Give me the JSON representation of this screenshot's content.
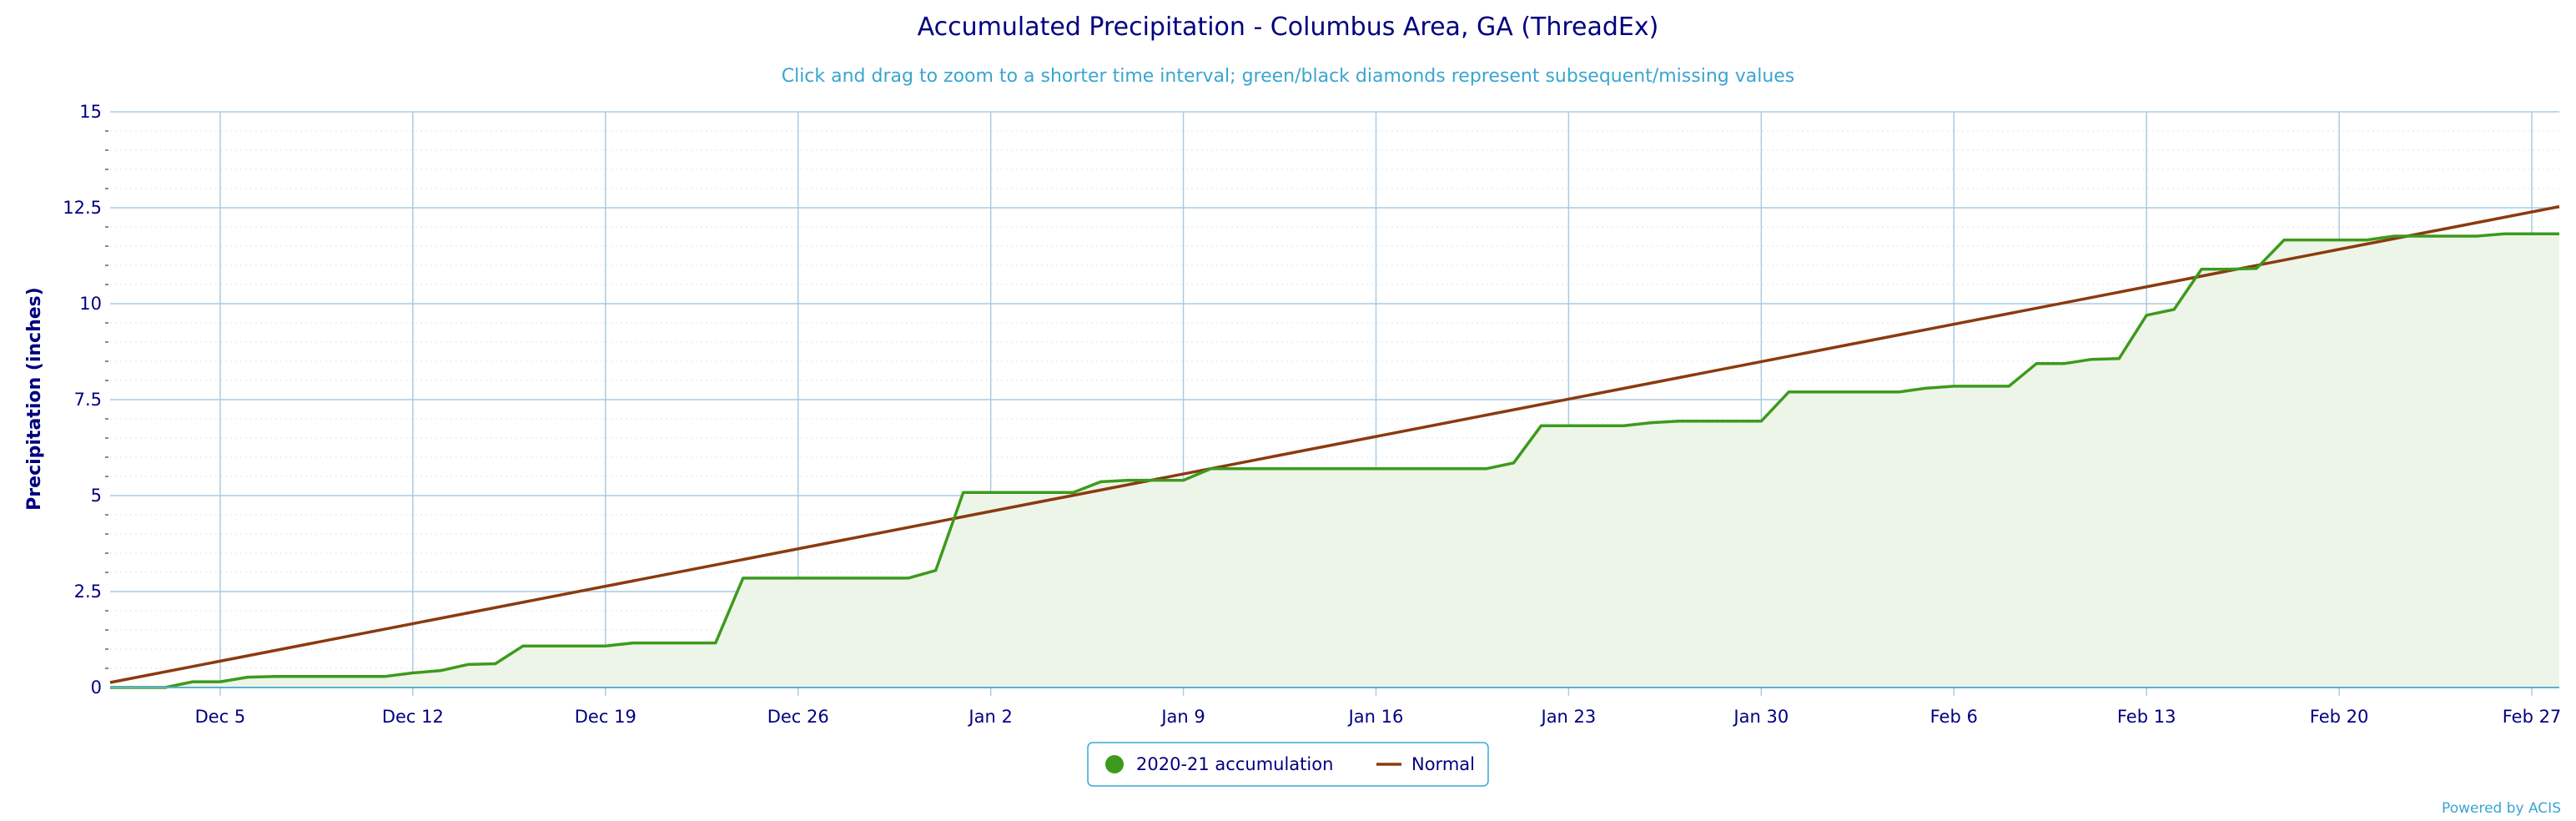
{
  "chart_data": {
    "type": "line",
    "title": "Accumulated Precipitation - Columbus Area, GA (ThreadEx)",
    "subtitle": "Click and drag to zoom to a shorter time interval; green/black diamonds represent subsequent/missing values",
    "xlabel": "",
    "ylabel": "Precipitation (inches)",
    "x_start_date": "Dec 1",
    "x_end_date": "Feb 28",
    "xlim": [
      0,
      89
    ],
    "ylim": [
      0,
      15
    ],
    "x_ticks": [
      {
        "label": "Dec 5",
        "x": 4
      },
      {
        "label": "Dec 12",
        "x": 11
      },
      {
        "label": "Dec 19",
        "x": 18
      },
      {
        "label": "Dec 26",
        "x": 25
      },
      {
        "label": "Jan 2",
        "x": 32
      },
      {
        "label": "Jan 9",
        "x": 39
      },
      {
        "label": "Jan 16",
        "x": 46
      },
      {
        "label": "Jan 23",
        "x": 53
      },
      {
        "label": "Jan 30",
        "x": 60
      },
      {
        "label": "Feb 6",
        "x": 67
      },
      {
        "label": "Feb 13",
        "x": 74
      },
      {
        "label": "Feb 20",
        "x": 81
      },
      {
        "label": "Feb 27",
        "x": 88
      }
    ],
    "y_ticks": [
      "0",
      "2.5",
      "5",
      "7.5",
      "10",
      "12.5",
      "15"
    ],
    "grid": true,
    "legend_position": "bottom-center",
    "series": [
      {
        "name": "2020-21 accumulation",
        "color": "#3d9a1c",
        "fill": "#edf5e8",
        "values": [
          0.0,
          0.0,
          0.0,
          0.15,
          0.15,
          0.27,
          0.29,
          0.29,
          0.29,
          0.29,
          0.29,
          0.38,
          0.44,
          0.6,
          0.62,
          1.08,
          1.08,
          1.08,
          1.08,
          1.16,
          1.16,
          1.16,
          1.16,
          2.85,
          2.85,
          2.85,
          2.85,
          2.85,
          2.85,
          2.85,
          3.05,
          5.08,
          5.08,
          5.08,
          5.08,
          5.08,
          5.36,
          5.4,
          5.4,
          5.4,
          5.7,
          5.7,
          5.7,
          5.7,
          5.7,
          5.7,
          5.7,
          5.7,
          5.7,
          5.7,
          5.7,
          5.85,
          6.82,
          6.82,
          6.82,
          6.82,
          6.9,
          6.94,
          6.94,
          6.94,
          6.94,
          7.7,
          7.7,
          7.7,
          7.7,
          7.7,
          7.8,
          7.85,
          7.85,
          7.85,
          8.44,
          8.44,
          8.55,
          8.57,
          9.7,
          9.85,
          10.9,
          10.9,
          10.92,
          11.66,
          11.66,
          11.66,
          11.66,
          11.76,
          11.76,
          11.76,
          11.76,
          11.82,
          11.82,
          11.82
        ]
      },
      {
        "name": "Normal",
        "color": "#8b3a0f",
        "points": [
          [
            0,
            0.13
          ],
          [
            89,
            12.53
          ]
        ]
      }
    ],
    "credit": "Powered by ACIS"
  }
}
